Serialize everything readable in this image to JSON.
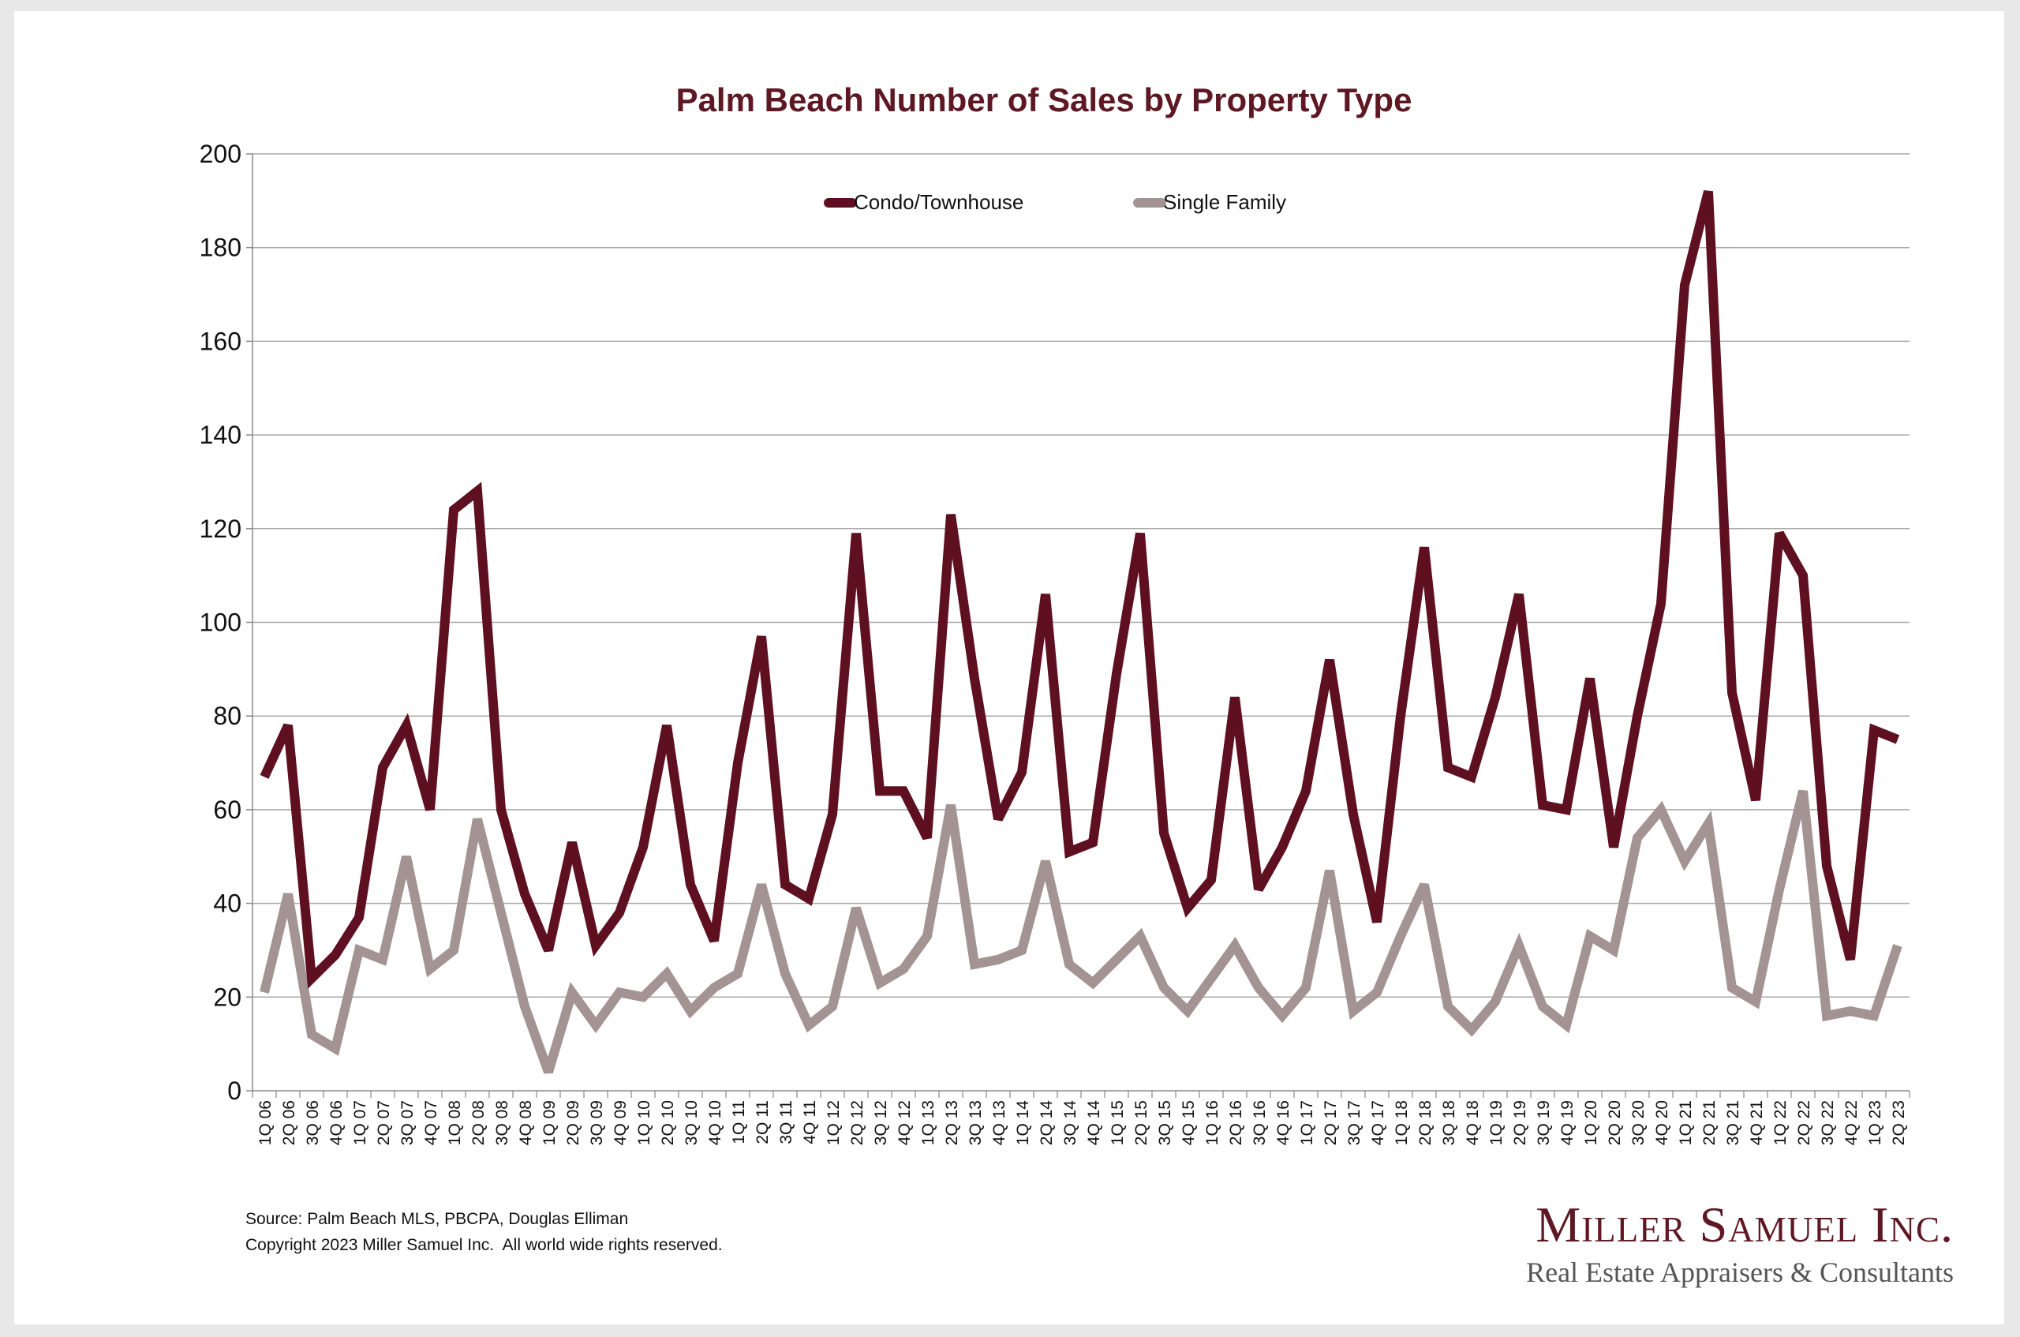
{
  "chart_data": {
    "type": "line",
    "title": "Palm Beach Number of Sales by Property Type",
    "xlabel": "",
    "ylabel": "",
    "ylim": [
      0,
      200
    ],
    "yticks": [
      0,
      20,
      40,
      60,
      80,
      100,
      120,
      140,
      160,
      180,
      200
    ],
    "grid": true,
    "legend_position": "top-center",
    "categories": [
      "1Q 06",
      "2Q 06",
      "3Q 06",
      "4Q 06",
      "1Q 07",
      "2Q 07",
      "3Q 07",
      "4Q 07",
      "1Q 08",
      "2Q 08",
      "3Q 08",
      "4Q 08",
      "1Q 09",
      "2Q 09",
      "3Q 09",
      "4Q 09",
      "1Q 10",
      "2Q 10",
      "3Q 10",
      "4Q 10",
      "1Q 11",
      "2Q 11",
      "3Q 11",
      "4Q 11",
      "1Q 12",
      "2Q 12",
      "3Q 12",
      "4Q 12",
      "1Q 13",
      "2Q 13",
      "3Q 13",
      "4Q 13",
      "1Q 14",
      "2Q 14",
      "3Q 14",
      "4Q 14",
      "1Q 15",
      "2Q 15",
      "3Q 15",
      "4Q 15",
      "1Q 16",
      "2Q 16",
      "3Q 16",
      "4Q 16",
      "1Q 17",
      "2Q 17",
      "3Q 17",
      "4Q 17",
      "1Q 18",
      "2Q 18",
      "3Q 18",
      "4Q 18",
      "1Q 19",
      "2Q 19",
      "3Q 19",
      "4Q 19",
      "1Q 20",
      "2Q 20",
      "3Q 20",
      "4Q 20",
      "1Q 21",
      "2Q 21",
      "3Q 21",
      "4Q 21",
      "1Q 22",
      "2Q 22",
      "3Q 22",
      "4Q 22",
      "1Q 23",
      "2Q 23"
    ],
    "series": [
      {
        "name": "Condo/Townhouse",
        "color": "#5e1020",
        "values": [
          67,
          78,
          24,
          29,
          37,
          69,
          78,
          60,
          124,
          128,
          60,
          42,
          30,
          53,
          31,
          38,
          52,
          78,
          44,
          32,
          70,
          97,
          44,
          41,
          59,
          119,
          64,
          64,
          54,
          123,
          88,
          58,
          68,
          106,
          51,
          53,
          89,
          119,
          55,
          39,
          45,
          84,
          43,
          52,
          64,
          92,
          59,
          36,
          80,
          116,
          69,
          67,
          84,
          106,
          61,
          60,
          88,
          52,
          80,
          104,
          172,
          192,
          85,
          62,
          119,
          110,
          48,
          28,
          77,
          75
        ]
      },
      {
        "name": "Single Family",
        "color": "#a39393",
        "values": [
          21,
          42,
          12,
          9,
          30,
          28,
          50,
          26,
          30,
          58,
          38,
          18,
          4,
          21,
          14,
          21,
          20,
          25,
          17,
          22,
          25,
          44,
          25,
          14,
          18,
          39,
          23,
          26,
          33,
          61,
          27,
          28,
          30,
          49,
          27,
          23,
          28,
          33,
          22,
          17,
          24,
          31,
          22,
          16,
          22,
          47,
          17,
          21,
          33,
          44,
          18,
          13,
          19,
          31,
          18,
          14,
          33,
          30,
          54,
          60,
          49,
          57,
          22,
          19,
          43,
          64,
          16,
          17,
          16,
          31
        ]
      }
    ]
  },
  "footer": {
    "source": "Source: Palm Beach MLS, PBCPA, Douglas Elliman",
    "copyright": "Copyright 2023 Miller Samuel Inc.  All world wide rights reserved."
  },
  "logo": {
    "name": "Miller Samuel Inc.",
    "tagline": "Real Estate Appraisers & Consultants"
  }
}
